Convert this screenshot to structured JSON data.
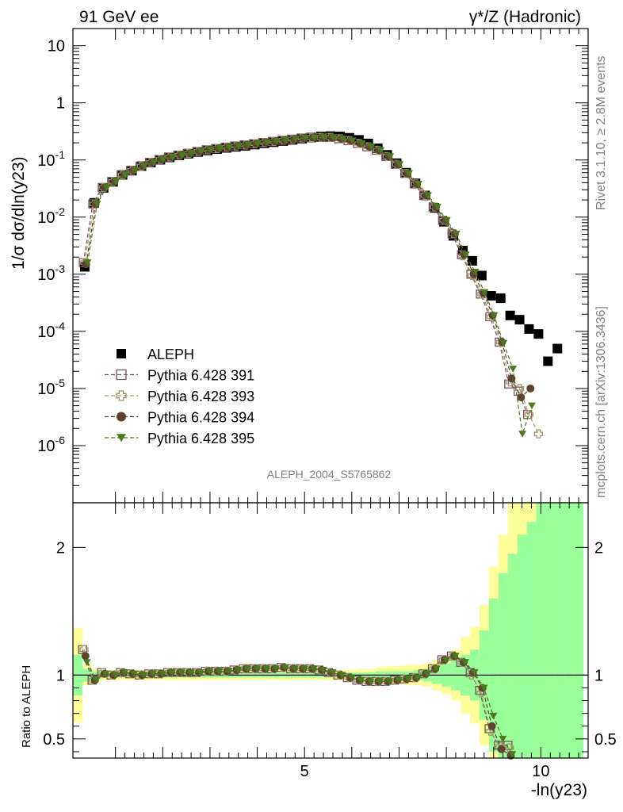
{
  "chart_data": [
    {
      "type": "scatter",
      "title_left": "91 GeV ee",
      "title_right": "γ*/Z (Hadronic)",
      "ylabel": "1/σ dσ/dln(y23)",
      "xlabel": "-ln(y23)",
      "yscale": "log",
      "xlim": [
        0.1,
        11.0
      ],
      "ylim": [
        1e-07,
        20
      ],
      "ytick_labels": [
        "10^-6",
        "10^-5",
        "10^-4",
        "10^-3",
        "10^-2",
        "10^-1",
        "1",
        "10"
      ],
      "xtick_labels": [
        "5",
        "10"
      ],
      "watermark": "ALEPH_2004_S5765862",
      "side_text_top": "Rivet 3.1.10, ≥ 2.8M events",
      "side_text_bottom": "mcplots.cern.ch [arXiv:1306.3436]",
      "legend_position": "lower-left",
      "x": [
        0.35,
        0.55,
        0.75,
        0.95,
        1.15,
        1.35,
        1.55,
        1.75,
        1.95,
        2.15,
        2.35,
        2.55,
        2.75,
        2.95,
        3.15,
        3.35,
        3.55,
        3.75,
        3.95,
        4.15,
        4.35,
        4.55,
        4.75,
        4.95,
        5.15,
        5.35,
        5.55,
        5.75,
        5.95,
        6.15,
        6.35,
        6.55,
        6.75,
        6.95,
        7.15,
        7.35,
        7.55,
        7.75,
        7.95,
        8.15,
        8.35,
        8.55,
        8.75,
        8.95,
        9.15,
        9.35,
        9.55,
        9.75,
        9.95,
        10.15,
        10.35,
        10.55,
        10.75
      ],
      "series": [
        {
          "name": "ALEPH",
          "color": "#000000",
          "marker": "filled-square",
          "values": [
            0.00135,
            0.0178,
            0.0325,
            0.0415,
            0.055,
            0.065,
            0.078,
            0.09,
            0.101,
            0.111,
            0.12,
            0.129,
            0.138,
            0.147,
            0.155,
            0.163,
            0.17,
            0.177,
            0.186,
            0.196,
            0.205,
            0.215,
            0.225,
            0.237,
            0.248,
            0.258,
            0.262,
            0.258,
            0.245,
            0.225,
            0.195,
            0.16,
            0.123,
            0.088,
            0.06,
            0.039,
            0.024,
            0.0145,
            0.0083,
            0.0047,
            0.0026,
            0.00172,
            0.00095,
            0.00042,
            0.00038,
            0.00019,
            0.00016,
            0.00011,
            9e-05,
            3e-05,
            5e-05,
            null,
            null
          ]
        },
        {
          "name": "Pythia 6.428 391",
          "color": "#7b4f5a",
          "marker": "open-square",
          "values": [
            0.0016,
            0.017,
            0.033,
            0.042,
            0.055,
            0.066,
            0.078,
            0.091,
            0.102,
            0.113,
            0.122,
            0.131,
            0.141,
            0.151,
            0.159,
            0.168,
            0.176,
            0.184,
            0.193,
            0.203,
            0.212,
            0.222,
            0.232,
            0.243,
            0.248,
            0.248,
            0.248,
            0.235,
            0.218,
            0.195,
            0.17,
            0.148,
            0.115,
            0.084,
            0.058,
            0.038,
            0.024,
            0.015,
            0.0088,
            0.0051,
            0.0022,
            0.001,
            0.00045,
            0.00018,
            6.5e-05,
            1.2e-05,
            9e-06,
            3.5e-06,
            null,
            null,
            null,
            null,
            null
          ]
        },
        {
          "name": "Pythia 6.428 393",
          "color": "#a0956a",
          "marker": "open-cross",
          "values": [
            0.0016,
            0.017,
            0.033,
            0.042,
            0.055,
            0.066,
            0.078,
            0.091,
            0.102,
            0.113,
            0.122,
            0.131,
            0.141,
            0.151,
            0.159,
            0.168,
            0.176,
            0.184,
            0.193,
            0.203,
            0.212,
            0.222,
            0.232,
            0.243,
            0.248,
            0.248,
            0.248,
            0.235,
            0.218,
            0.195,
            0.17,
            0.148,
            0.115,
            0.084,
            0.058,
            0.038,
            0.024,
            0.015,
            0.0088,
            0.0051,
            0.0021,
            0.00095,
            0.00045,
            0.00018,
            6.5e-05,
            1.3e-05,
            1e-05,
            3.5e-06,
            1.6e-06,
            null,
            null,
            null,
            null
          ]
        },
        {
          "name": "Pythia 6.428 394",
          "color": "#5e4430",
          "marker": "filled-circle",
          "values": [
            0.0015,
            0.017,
            0.033,
            0.042,
            0.055,
            0.066,
            0.078,
            0.091,
            0.102,
            0.113,
            0.122,
            0.131,
            0.141,
            0.151,
            0.159,
            0.168,
            0.176,
            0.184,
            0.193,
            0.203,
            0.212,
            0.222,
            0.232,
            0.243,
            0.248,
            0.248,
            0.248,
            0.235,
            0.218,
            0.195,
            0.17,
            0.148,
            0.115,
            0.084,
            0.058,
            0.038,
            0.024,
            0.015,
            0.0088,
            0.0051,
            0.0022,
            0.001,
            0.00047,
            0.00019,
            6.5e-05,
            1.5e-05,
            7e-06,
            1e-05,
            null,
            null,
            null,
            null,
            null
          ]
        },
        {
          "name": "Pythia 6.428 395",
          "color": "#4a7a1e",
          "marker": "filled-triangle-down",
          "values": [
            0.0016,
            0.017,
            0.033,
            0.042,
            0.055,
            0.066,
            0.078,
            0.091,
            0.102,
            0.113,
            0.122,
            0.131,
            0.141,
            0.151,
            0.159,
            0.168,
            0.176,
            0.184,
            0.193,
            0.203,
            0.212,
            0.222,
            0.232,
            0.243,
            0.248,
            0.248,
            0.248,
            0.235,
            0.218,
            0.195,
            0.17,
            0.148,
            0.115,
            0.084,
            0.058,
            0.038,
            0.024,
            0.015,
            0.0088,
            0.0051,
            0.0022,
            0.0011,
            0.00048,
            0.00019,
            6.2e-05,
            2.2e-05,
            1.6e-06,
            5e-06,
            null,
            null,
            null,
            null,
            null
          ]
        }
      ]
    },
    {
      "type": "scatter",
      "ylabel": "Ratio to ALEPH",
      "xlabel": "-ln(y23)",
      "xlim": [
        0.1,
        11.0
      ],
      "ylim": [
        0.35,
        2.35
      ],
      "ytick_labels": [
        "0.5",
        "1",
        "2"
      ],
      "xtick_labels": [
        "5",
        "10"
      ],
      "reference_line": 1,
      "band_colors": {
        "stat": "#99ff99",
        "total": "#ffff99"
      },
      "band_x": [
        0.1,
        0.3,
        0.5,
        0.7,
        0.9,
        1.1,
        1.3,
        1.5,
        1.7,
        1.9,
        2.1,
        2.3,
        2.5,
        2.7,
        2.9,
        3.1,
        3.3,
        3.5,
        3.7,
        3.9,
        4.1,
        4.3,
        4.5,
        4.7,
        4.9,
        5.1,
        5.3,
        5.5,
        5.7,
        5.9,
        6.1,
        6.3,
        6.5,
        6.7,
        6.9,
        7.1,
        7.3,
        7.5,
        7.7,
        7.9,
        8.1,
        8.3,
        8.5,
        8.7,
        8.9,
        9.1,
        9.3,
        9.5,
        9.7,
        9.9,
        10.1,
        10.3,
        10.5,
        10.7,
        10.9
      ],
      "band_inner_half": [
        0.16,
        0.05,
        0.03,
        0.02,
        0.02,
        0.02,
        0.02,
        0.02,
        0.02,
        0.02,
        0.02,
        0.02,
        0.02,
        0.02,
        0.02,
        0.02,
        0.02,
        0.02,
        0.02,
        0.02,
        0.02,
        0.02,
        0.02,
        0.02,
        0.02,
        0.02,
        0.02,
        0.02,
        0.02,
        0.02,
        0.02,
        0.02,
        0.03,
        0.03,
        0.03,
        0.03,
        0.04,
        0.05,
        0.07,
        0.09,
        0.12,
        0.16,
        0.2,
        0.35,
        0.6,
        0.8,
        0.95,
        1.1,
        1.2,
        1.4,
        1.6,
        1.6,
        1.6,
        1.6
      ],
      "band_outer_half": [
        0.37,
        0.08,
        0.05,
        0.04,
        0.04,
        0.04,
        0.04,
        0.04,
        0.04,
        0.04,
        0.04,
        0.04,
        0.04,
        0.04,
        0.04,
        0.04,
        0.04,
        0.04,
        0.04,
        0.04,
        0.04,
        0.04,
        0.04,
        0.04,
        0.04,
        0.04,
        0.04,
        0.04,
        0.04,
        0.04,
        0.05,
        0.05,
        0.06,
        0.07,
        0.07,
        0.08,
        0.08,
        0.09,
        0.12,
        0.15,
        0.2,
        0.3,
        0.38,
        0.55,
        0.85,
        1.1,
        1.4,
        1.4,
        1.4,
        1.4,
        1.4,
        1.4,
        1.4,
        1.4
      ],
      "x": [
        0.35,
        0.55,
        0.75,
        0.95,
        1.15,
        1.35,
        1.55,
        1.75,
        1.95,
        2.15,
        2.35,
        2.55,
        2.75,
        2.95,
        3.15,
        3.35,
        3.55,
        3.75,
        3.95,
        4.15,
        4.35,
        4.55,
        4.75,
        4.95,
        5.15,
        5.35,
        5.55,
        5.75,
        5.95,
        6.15,
        6.35,
        6.55,
        6.75,
        6.95,
        7.15,
        7.35,
        7.55,
        7.75,
        7.95,
        8.15,
        8.35,
        8.55,
        8.75,
        8.95,
        9.15,
        9.35
      ],
      "series": [
        {
          "name": "Pythia 6.428 391",
          "color": "#7b4f5a",
          "marker": "open-square",
          "values": [
            1.2,
            0.96,
            1.02,
            1.0,
            1.02,
            1.01,
            1.0,
            1.01,
            1.01,
            1.02,
            1.02,
            1.02,
            1.02,
            1.03,
            1.03,
            1.03,
            1.04,
            1.05,
            1.05,
            1.05,
            1.05,
            1.06,
            1.05,
            1.05,
            1.05,
            1.04,
            1.02,
            1.0,
            0.98,
            0.96,
            0.95,
            0.95,
            0.95,
            0.96,
            0.97,
            0.98,
            1.01,
            1.05,
            1.12,
            1.15,
            1.1,
            1.02,
            0.88,
            0.58,
            0.45,
            0.45
          ]
        },
        {
          "name": "Pythia 6.428 393",
          "color": "#a0956a",
          "marker": "open-cross",
          "values": [
            1.2,
            0.96,
            1.02,
            1.0,
            1.02,
            1.01,
            1.0,
            1.01,
            1.01,
            1.02,
            1.02,
            1.02,
            1.02,
            1.03,
            1.03,
            1.03,
            1.04,
            1.05,
            1.05,
            1.05,
            1.05,
            1.06,
            1.05,
            1.05,
            1.05,
            1.04,
            1.02,
            1.0,
            0.98,
            0.96,
            0.95,
            0.95,
            0.95,
            0.96,
            0.97,
            0.98,
            1.01,
            1.05,
            1.12,
            1.15,
            1.1,
            1.0,
            0.86,
            0.56,
            0.44,
            0.43
          ]
        },
        {
          "name": "Pythia 6.428 394",
          "color": "#5e4430",
          "marker": "filled-circle",
          "values": [
            1.15,
            0.96,
            1.01,
            1.0,
            1.02,
            1.01,
            1.0,
            1.01,
            1.01,
            1.02,
            1.02,
            1.02,
            1.02,
            1.03,
            1.03,
            1.03,
            1.04,
            1.05,
            1.05,
            1.05,
            1.05,
            1.06,
            1.05,
            1.05,
            1.05,
            1.04,
            1.02,
            1.0,
            0.98,
            0.96,
            0.95,
            0.95,
            0.95,
            0.96,
            0.97,
            0.98,
            1.01,
            1.05,
            1.12,
            1.15,
            1.1,
            1.02,
            0.9,
            0.6,
            0.42,
            0.37
          ]
        },
        {
          "name": "Pythia 6.428 395",
          "color": "#4a7a1e",
          "marker": "filled-triangle-down",
          "values": [
            1.1,
            0.96,
            1.01,
            1.0,
            1.02,
            1.01,
            1.0,
            1.01,
            1.01,
            1.02,
            1.02,
            1.02,
            1.02,
            1.03,
            1.03,
            1.03,
            1.04,
            1.05,
            1.05,
            1.05,
            1.05,
            1.06,
            1.05,
            1.05,
            1.05,
            1.04,
            1.02,
            1.0,
            0.98,
            0.96,
            0.95,
            0.95,
            0.95,
            0.96,
            0.97,
            0.98,
            1.01,
            1.05,
            1.12,
            1.15,
            1.1,
            1.02,
            0.9,
            0.68,
            0.5,
            0.38
          ]
        }
      ]
    }
  ]
}
